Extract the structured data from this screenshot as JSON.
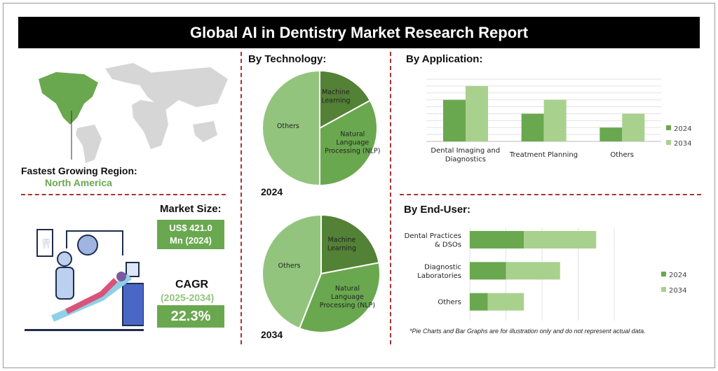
{
  "title": "Global AI in Dentistry Market Research Report",
  "region": {
    "label": "Fastest Growing Region:",
    "value": "North America"
  },
  "market": {
    "label": "Market Size:",
    "value_line1": "US$ 421.0",
    "value_line2": "Mn (2024)",
    "cagr_label": "CAGR",
    "cagr_period": "(2025-2034)",
    "cagr_value": "22.3%"
  },
  "colors": {
    "dark": "#538135",
    "mid": "#6aa84f",
    "light": "#a9d18e",
    "pie_light": "#93c47d",
    "title_bg": "#000000",
    "divider": "#aa3333"
  },
  "footnote": "*Pie Charts and Bar Graphs are for illustration only and do not represent actual data.",
  "chart_data": [
    {
      "type": "pie",
      "title": "By Technology:",
      "year": "2024",
      "slices": [
        {
          "label": "Machine Learning",
          "value": 17
        },
        {
          "label": "Natural Language Processing (NLP)",
          "value": 33
        },
        {
          "label": "Others",
          "value": 50
        }
      ]
    },
    {
      "type": "pie",
      "title": "By Technology:",
      "year": "2034",
      "slices": [
        {
          "label": "Machine Learning",
          "value": 22
        },
        {
          "label": "Natural Language Processing (NLP)",
          "value": 34
        },
        {
          "label": "Others",
          "value": 44
        }
      ]
    },
    {
      "type": "bar",
      "title": "By Application:",
      "categories": [
        "Dental Imaging and Diagnostics",
        "Treatment Planning",
        "Others"
      ],
      "series": [
        {
          "name": "2024",
          "values": [
            6,
            4,
            2
          ]
        },
        {
          "name": "2034",
          "values": [
            8,
            6,
            4
          ]
        }
      ],
      "ylim": [
        0,
        9
      ],
      "grid": true,
      "legend": "right"
    },
    {
      "type": "bar",
      "orientation": "horizontal",
      "stacked": true,
      "title": "By End-User:",
      "categories": [
        "Dental Practices & DSOs",
        "Diagnostic Laboratories",
        "Others"
      ],
      "series": [
        {
          "name": "2024",
          "values": [
            1.5,
            1,
            0.5
          ]
        },
        {
          "name": "2034",
          "values": [
            2,
            1.5,
            1
          ]
        }
      ],
      "xlim": [
        0,
        4
      ],
      "grid": true,
      "legend": "right"
    }
  ]
}
